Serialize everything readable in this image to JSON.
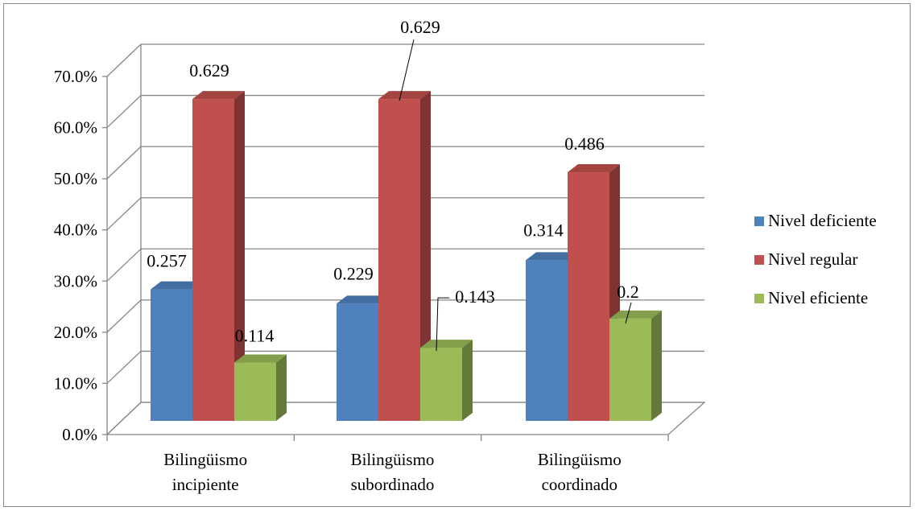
{
  "chart_data": {
    "type": "bar",
    "style": "3d-clustered-column",
    "categories": [
      [
        "Bilingüismo",
        "incipiente"
      ],
      [
        "Bilingüismo",
        "subordinado"
      ],
      [
        "Bilingüismo",
        "coordinado"
      ]
    ],
    "series": [
      {
        "name": "Nivel deficiente",
        "color": "#4F81BD",
        "values": [
          0.257,
          0.229,
          0.314
        ],
        "labels": [
          "0.257",
          "0.229",
          "0.314"
        ]
      },
      {
        "name": "Nivel regular",
        "color": "#C0504D",
        "values": [
          0.629,
          0.629,
          0.486
        ],
        "labels": [
          "0.629",
          "0.629",
          "0.486"
        ]
      },
      {
        "name": "Nivel eficiente",
        "color": "#9BBB59",
        "values": [
          0.114,
          0.143,
          0.2
        ],
        "labels": [
          "0.114",
          "0.143",
          "0.2"
        ]
      }
    ],
    "y_ticks": [
      "0.0%",
      "10.0%",
      "20.0%",
      "30.0%",
      "40.0%",
      "50.0%",
      "60.0%",
      "70.0%"
    ],
    "ylim": [
      0,
      0.7
    ],
    "grid": true,
    "legend_position": "right",
    "title": "",
    "xlabel": "",
    "ylabel": ""
  }
}
